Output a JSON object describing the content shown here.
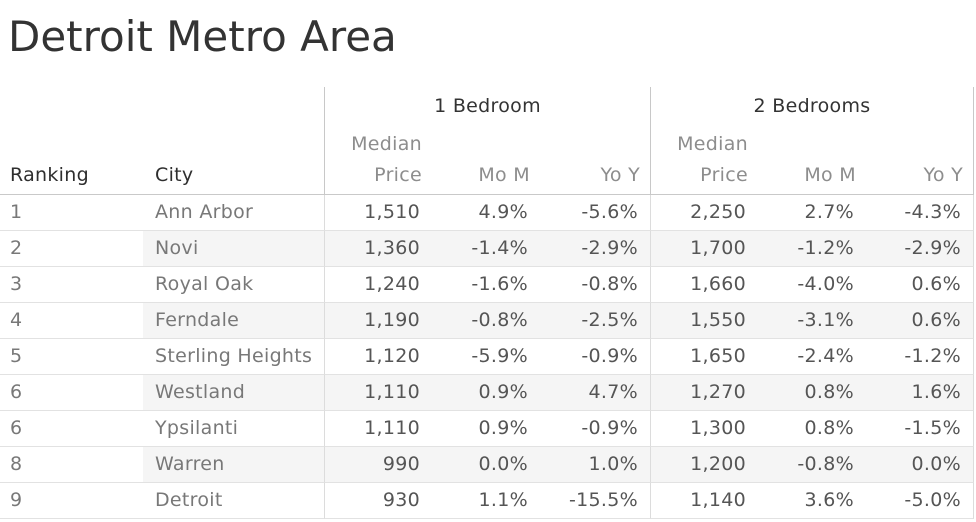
{
  "title": "Detroit Metro Area",
  "headers": {
    "ranking": "Ranking",
    "city": "City",
    "group_1br": "1 Bedroom",
    "group_2br": "2 Bedrooms",
    "median_price_line1": "Median",
    "median_price_line2": "Price",
    "mom": "Mo M",
    "yoy": "Yo Y"
  },
  "chart_data": {
    "type": "table",
    "title": "Detroit Metro Area",
    "row_header_columns": [
      "Ranking",
      "City"
    ],
    "column_groups": [
      {
        "label": "1 Bedroom",
        "columns": [
          "Median Price",
          "Mo M",
          "Yo Y"
        ]
      },
      {
        "label": "2 Bedrooms",
        "columns": [
          "Median Price",
          "Mo M",
          "Yo Y"
        ]
      }
    ],
    "rows": [
      {
        "ranking": 1,
        "city": "Ann Arbor",
        "br1": {
          "median_price": 1510,
          "mom_pct": 4.9,
          "yoy_pct": -5.6
        },
        "br2": {
          "median_price": 2250,
          "mom_pct": 2.7,
          "yoy_pct": -4.3
        }
      },
      {
        "ranking": 2,
        "city": "Novi",
        "br1": {
          "median_price": 1360,
          "mom_pct": -1.4,
          "yoy_pct": -2.9
        },
        "br2": {
          "median_price": 1700,
          "mom_pct": -1.2,
          "yoy_pct": -2.9
        }
      },
      {
        "ranking": 3,
        "city": "Royal Oak",
        "br1": {
          "median_price": 1240,
          "mom_pct": -1.6,
          "yoy_pct": -0.8
        },
        "br2": {
          "median_price": 1660,
          "mom_pct": -4.0,
          "yoy_pct": 0.6
        }
      },
      {
        "ranking": 4,
        "city": "Ferndale",
        "br1": {
          "median_price": 1190,
          "mom_pct": -0.8,
          "yoy_pct": -2.5
        },
        "br2": {
          "median_price": 1550,
          "mom_pct": -3.1,
          "yoy_pct": 0.6
        }
      },
      {
        "ranking": 5,
        "city": "Sterling Heights",
        "br1": {
          "median_price": 1120,
          "mom_pct": -5.9,
          "yoy_pct": -0.9
        },
        "br2": {
          "median_price": 1650,
          "mom_pct": -2.4,
          "yoy_pct": -1.2
        }
      },
      {
        "ranking": 6,
        "city": "Westland",
        "br1": {
          "median_price": 1110,
          "mom_pct": 0.9,
          "yoy_pct": 4.7
        },
        "br2": {
          "median_price": 1270,
          "mom_pct": 0.8,
          "yoy_pct": 1.6
        }
      },
      {
        "ranking": 6,
        "city": "Ypsilanti",
        "br1": {
          "median_price": 1110,
          "mom_pct": 0.9,
          "yoy_pct": -0.9
        },
        "br2": {
          "median_price": 1300,
          "mom_pct": 0.8,
          "yoy_pct": -1.5
        }
      },
      {
        "ranking": 8,
        "city": "Warren",
        "br1": {
          "median_price": 990,
          "mom_pct": 0.0,
          "yoy_pct": 1.0
        },
        "br2": {
          "median_price": 1200,
          "mom_pct": -0.8,
          "yoy_pct": 0.0
        }
      },
      {
        "ranking": 9,
        "city": "Detroit",
        "br1": {
          "median_price": 930,
          "mom_pct": 1.1,
          "yoy_pct": -15.5
        },
        "br2": {
          "median_price": 1140,
          "mom_pct": 3.6,
          "yoy_pct": -5.0
        }
      }
    ]
  },
  "colors": {
    "title_text": "#333333",
    "group_header_text": "#333333",
    "row_header_text": "#2e2e2e",
    "sub_header_text": "#8d8d8d",
    "city_text": "#787878",
    "value_text": "#555555",
    "row_band": "#f5f5f5",
    "row_divider": "#e2e2e2",
    "header_rule": "#c9c9c9",
    "section_rule": "#c8c8c8"
  }
}
